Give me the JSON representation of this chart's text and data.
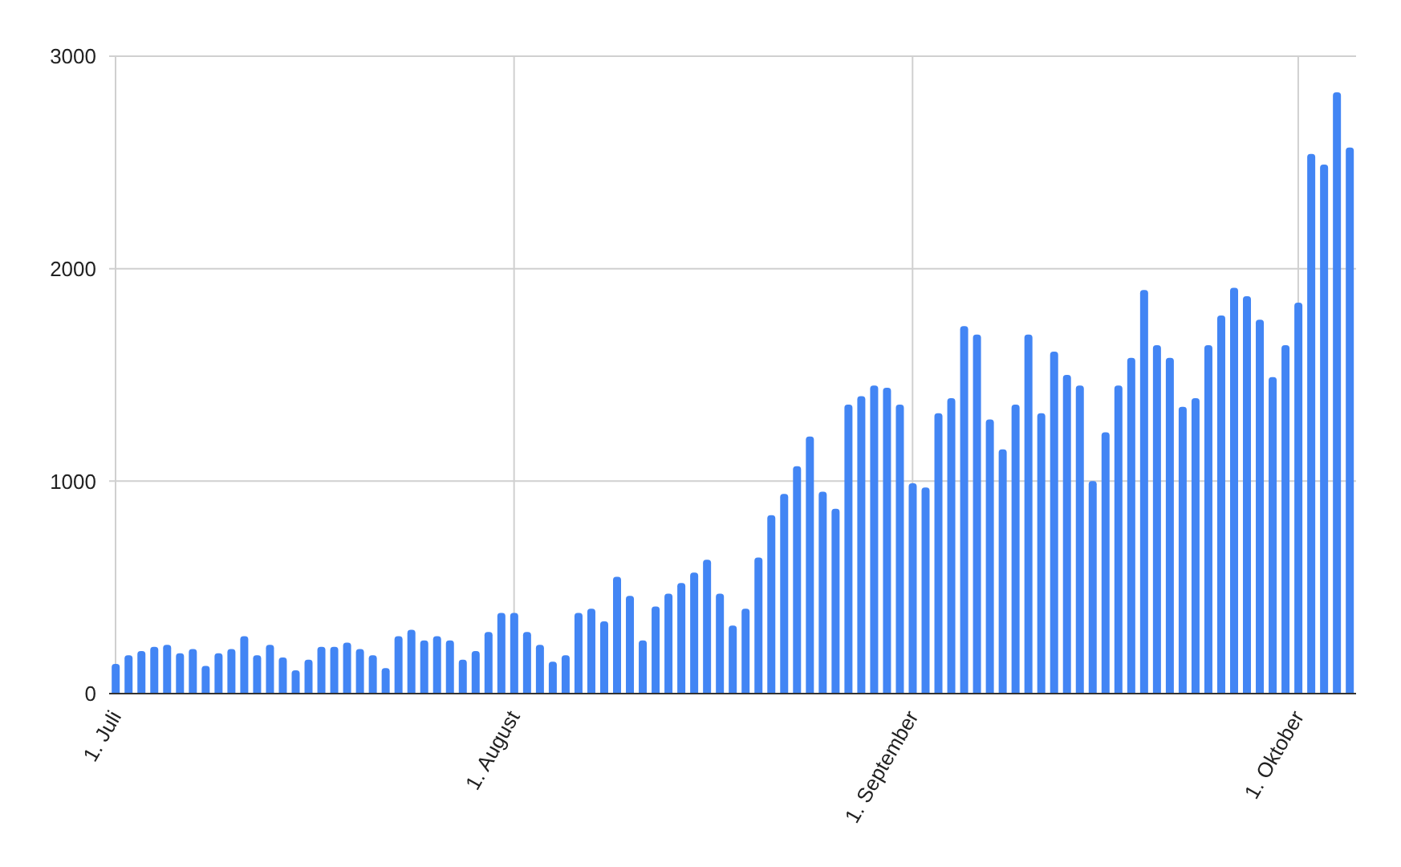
{
  "chart_data": {
    "type": "bar",
    "categories": [
      "1. Juli",
      null,
      null,
      null,
      null,
      null,
      null,
      null,
      null,
      null,
      null,
      null,
      null,
      null,
      null,
      null,
      null,
      null,
      null,
      null,
      null,
      null,
      null,
      null,
      null,
      null,
      null,
      null,
      null,
      null,
      null,
      "1. August",
      null,
      null,
      null,
      null,
      null,
      null,
      null,
      null,
      null,
      null,
      null,
      null,
      null,
      null,
      null,
      null,
      null,
      null,
      null,
      null,
      null,
      null,
      null,
      null,
      null,
      null,
      null,
      null,
      null,
      null,
      "1. September",
      null,
      null,
      null,
      null,
      null,
      null,
      null,
      null,
      null,
      null,
      null,
      null,
      null,
      null,
      null,
      null,
      null,
      null,
      null,
      null,
      null,
      null,
      null,
      null,
      null,
      null,
      null,
      null,
      null,
      "1. Oktober",
      null,
      null,
      null,
      null
    ],
    "values": [
      140,
      180,
      200,
      220,
      230,
      190,
      210,
      130,
      190,
      210,
      270,
      180,
      230,
      170,
      110,
      160,
      220,
      220,
      240,
      210,
      180,
      120,
      270,
      300,
      250,
      270,
      250,
      160,
      200,
      290,
      380,
      380,
      290,
      230,
      150,
      180,
      380,
      400,
      340,
      550,
      460,
      250,
      410,
      470,
      520,
      570,
      630,
      470,
      320,
      400,
      640,
      840,
      940,
      1070,
      1210,
      950,
      870,
      1360,
      1400,
      1450,
      1440,
      1360,
      990,
      970,
      1320,
      1390,
      1730,
      1690,
      1290,
      1150,
      1360,
      1690,
      1320,
      1610,
      1500,
      1450,
      1000,
      1230,
      1450,
      1580,
      1900,
      1640,
      1580,
      1350,
      1390,
      1640,
      1780,
      1910,
      1870,
      1760,
      1490,
      1640,
      1840,
      2540,
      2490,
      2830,
      2570
    ],
    "color": "#4285f4",
    "ylim": [
      0,
      3000
    ],
    "yticks": [
      0,
      1000,
      2000,
      3000
    ],
    "grid": true
  }
}
